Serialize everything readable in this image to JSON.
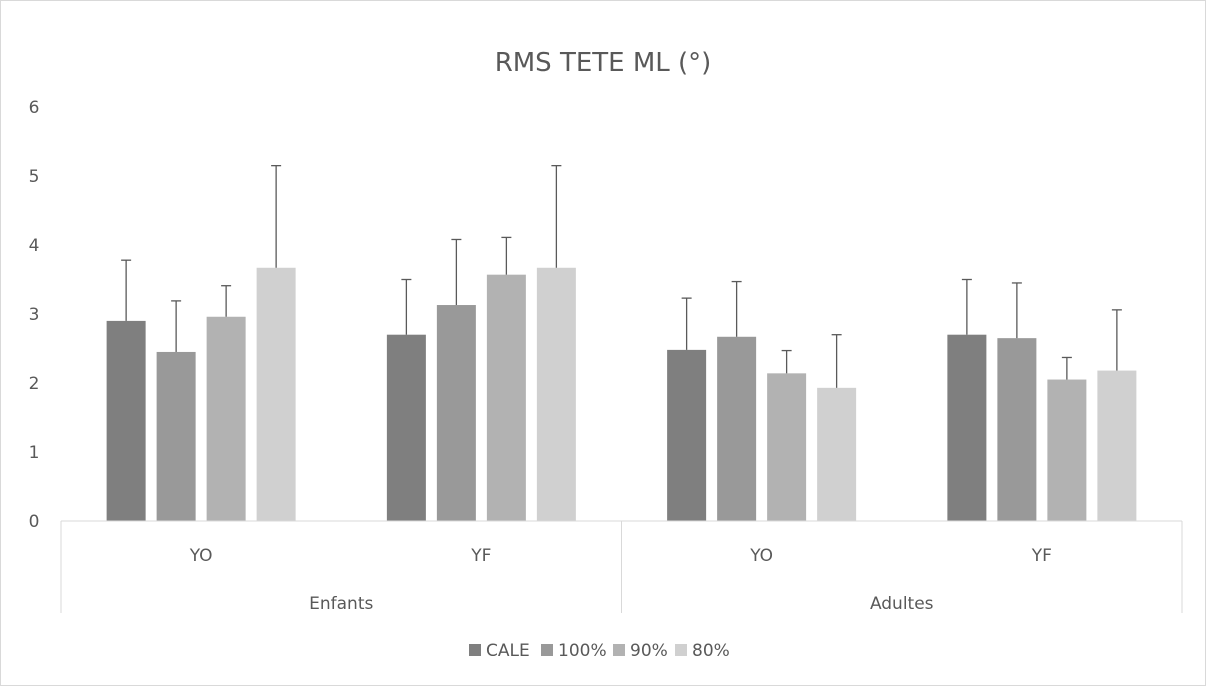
{
  "chart_data": {
    "type": "bar",
    "title": "RMS TETE ML (°)",
    "xlabel": "",
    "ylabel": "",
    "ylim": [
      0,
      6
    ],
    "yticks": [
      "0",
      "1",
      "2",
      "3",
      "4",
      "5",
      "6"
    ],
    "groups": [
      {
        "label": "Enfants",
        "categories": [
          "YO",
          "YF"
        ]
      },
      {
        "label": "Adultes",
        "categories": [
          "YO",
          "YF"
        ]
      }
    ],
    "categories": [
      "YO",
      "YF",
      "YO",
      "YF"
    ],
    "series": [
      {
        "name": "CALE",
        "color": "#7f7f7f",
        "values": [
          2.9,
          2.7,
          2.48,
          2.7
        ],
        "errors": [
          0.88,
          0.8,
          0.75,
          0.8
        ]
      },
      {
        "name": "100%",
        "color": "#999999",
        "values": [
          2.45,
          3.13,
          2.67,
          2.65
        ],
        "errors": [
          0.74,
          0.95,
          0.8,
          0.8
        ]
      },
      {
        "name": "90%",
        "color": "#b2b2b2",
        "values": [
          2.96,
          3.57,
          2.14,
          2.05
        ],
        "errors": [
          0.45,
          0.54,
          0.33,
          0.32
        ]
      },
      {
        "name": "80%",
        "color": "#d0d0d0",
        "values": [
          3.67,
          3.67,
          1.93,
          2.18
        ],
        "errors": [
          1.48,
          1.48,
          0.77,
          0.88
        ]
      }
    ],
    "grid": false,
    "error_bars": true,
    "legend": "bottom"
  }
}
